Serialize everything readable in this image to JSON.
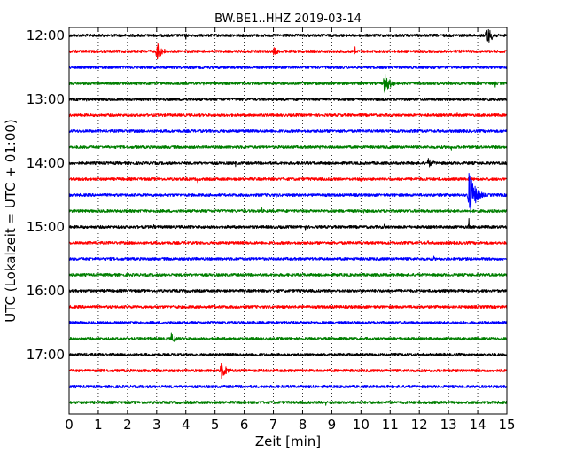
{
  "chart_data": {
    "type": "line",
    "title": "BW.BE1..HHZ 2019-03-14",
    "xlabel": "Zeit  [min]",
    "ylabel": "UTC (Lokalzeit = UTC + 01:00)",
    "xlim": [
      0,
      15
    ],
    "x_ticks": [
      0,
      1,
      2,
      3,
      4,
      5,
      6,
      7,
      8,
      9,
      10,
      11,
      12,
      13,
      14,
      15
    ],
    "x_tick_labels": [
      "0",
      "1",
      "2",
      "3",
      "4",
      "5",
      "6",
      "7",
      "8",
      "9",
      "10",
      "11",
      "12",
      "13",
      "14",
      "15"
    ],
    "y_tick_labels": [
      "12:00",
      "13:00",
      "14:00",
      "15:00",
      "16:00",
      "17:00"
    ],
    "grid": "vertical dotted",
    "color_cycle": [
      "#000000",
      "#ff0000",
      "#0000ff",
      "#007f00"
    ],
    "traces": [
      {
        "start": "12:00",
        "events": [
          {
            "t": 4.0,
            "amp": 7,
            "kind": "spike"
          },
          {
            "t": 7.5,
            "amp": 4,
            "kind": "spike"
          },
          {
            "t": 14.3,
            "amp": 12,
            "kind": "quake"
          }
        ]
      },
      {
        "start": "12:15",
        "events": [
          {
            "t": 3.0,
            "amp": 11,
            "kind": "quake"
          },
          {
            "t": 7.0,
            "amp": 5,
            "kind": "quake"
          },
          {
            "t": 9.8,
            "amp": 8,
            "kind": "spike"
          },
          {
            "t": 11.5,
            "amp": 4,
            "kind": "spike"
          }
        ]
      },
      {
        "start": "12:30",
        "events": []
      },
      {
        "start": "12:45",
        "events": [
          {
            "t": 4.6,
            "amp": 5,
            "kind": "spike"
          },
          {
            "t": 10.8,
            "amp": 13,
            "kind": "quake"
          },
          {
            "t": 14.6,
            "amp": 5,
            "kind": "spike"
          }
        ]
      },
      {
        "start": "13:00",
        "events": [
          {
            "t": 0.6,
            "amp": 4,
            "kind": "spike"
          },
          {
            "t": 3.1,
            "amp": 4,
            "kind": "spike"
          }
        ]
      },
      {
        "start": "13:15",
        "events": [
          {
            "t": 4.5,
            "amp": 5,
            "kind": "spike"
          },
          {
            "t": 7.8,
            "amp": 4,
            "kind": "spike"
          },
          {
            "t": 13.3,
            "amp": 4,
            "kind": "spike"
          }
        ]
      },
      {
        "start": "13:30",
        "events": [
          {
            "t": 4.8,
            "amp": 6,
            "kind": "spike"
          }
        ]
      },
      {
        "start": "13:45",
        "events": [
          {
            "t": 8.6,
            "amp": 4,
            "kind": "spike"
          },
          {
            "t": 13.1,
            "amp": 4,
            "kind": "spike"
          }
        ]
      },
      {
        "start": "14:00",
        "events": [
          {
            "t": 5.7,
            "amp": 4,
            "kind": "spike"
          },
          {
            "t": 12.3,
            "amp": 6,
            "kind": "quake"
          }
        ]
      },
      {
        "start": "14:15",
        "events": [
          {
            "t": 1.5,
            "amp": 4,
            "kind": "spike"
          },
          {
            "t": 4.4,
            "amp": 4,
            "kind": "spike"
          },
          {
            "t": 10.0,
            "amp": 4,
            "kind": "spike"
          }
        ]
      },
      {
        "start": "14:30",
        "events": [
          {
            "t": 7.1,
            "amp": 4,
            "kind": "spike"
          },
          {
            "t": 13.7,
            "amp": 30,
            "kind": "quake"
          }
        ]
      },
      {
        "start": "14:45",
        "events": [
          {
            "t": 6.6,
            "amp": 4,
            "kind": "spike"
          },
          {
            "t": 10.1,
            "amp": 5,
            "kind": "spike"
          }
        ]
      },
      {
        "start": "15:00",
        "events": [
          {
            "t": 2.9,
            "amp": 4,
            "kind": "spike"
          },
          {
            "t": 7.1,
            "amp": 4,
            "kind": "spike"
          },
          {
            "t": 8.1,
            "amp": 6,
            "kind": "spike"
          },
          {
            "t": 10.4,
            "amp": 4,
            "kind": "spike"
          },
          {
            "t": 10.8,
            "amp": 4,
            "kind": "spike"
          },
          {
            "t": 13.7,
            "amp": 14,
            "kind": "spike"
          }
        ]
      },
      {
        "start": "15:15",
        "events": [
          {
            "t": 4.3,
            "amp": 5,
            "kind": "spike"
          },
          {
            "t": 12.3,
            "amp": 5,
            "kind": "spike"
          }
        ]
      },
      {
        "start": "15:30",
        "events": [
          {
            "t": 12.5,
            "amp": 5,
            "kind": "spike"
          }
        ]
      },
      {
        "start": "15:45",
        "events": []
      },
      {
        "start": "16:00",
        "events": [
          {
            "t": 14.6,
            "amp": 4,
            "kind": "spike"
          }
        ]
      },
      {
        "start": "16:15",
        "events": []
      },
      {
        "start": "16:30",
        "events": [
          {
            "t": 8.7,
            "amp": 5,
            "kind": "spike"
          }
        ]
      },
      {
        "start": "16:45",
        "events": [
          {
            "t": 3.5,
            "amp": 6,
            "kind": "quake"
          }
        ]
      },
      {
        "start": "17:00",
        "events": []
      },
      {
        "start": "17:15",
        "events": [
          {
            "t": 5.2,
            "amp": 11,
            "kind": "quake"
          }
        ]
      },
      {
        "start": "17:30",
        "events": []
      },
      {
        "start": "17:45",
        "events": [
          {
            "t": 8.8,
            "amp": 4,
            "kind": "spike"
          }
        ]
      }
    ]
  }
}
